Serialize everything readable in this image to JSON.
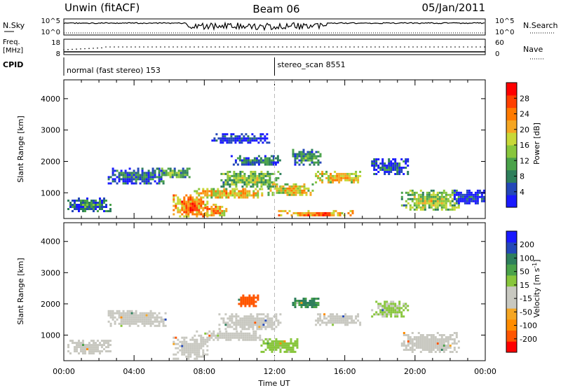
{
  "header": {
    "station": "Unwin (fitACF)",
    "beam": "Beam 06",
    "date": "05/Jan/2011"
  },
  "top_panels": {
    "nsky": {
      "left_label": "N.Sky",
      "right_label": "N.Search",
      "left_ticks": [
        "10^5",
        "10^0"
      ],
      "right_ticks": [
        "10^5",
        "10^0"
      ]
    },
    "freq": {
      "left_label": "Freq.",
      "left_unit": "[MHz]",
      "right_label": "Nave",
      "left_ticks": [
        "18",
        "8"
      ],
      "right_ticks": [
        "60",
        "0"
      ]
    },
    "cpid": {
      "label": "CPID",
      "modes": [
        {
          "text": "normal (fast stereo) 153",
          "start_hour": 0
        },
        {
          "text": "stereo_scan 8551",
          "start_hour": 12
        }
      ]
    }
  },
  "chart_data": [
    {
      "type": "heatmap",
      "title": "",
      "xlabel": "",
      "ylabel": "Slant Range [km]",
      "xlim": [
        0,
        24
      ],
      "ylim": [
        180,
        4600
      ],
      "yticks": [
        1000,
        2000,
        3000,
        4000
      ],
      "colorbar": {
        "label": "Power [dB]",
        "ticks": [
          "4",
          "8",
          "12",
          "16",
          "20",
          "24",
          "28"
        ],
        "tick_values": [
          4,
          8,
          12,
          16,
          20,
          24,
          28
        ],
        "range": [
          0,
          32
        ],
        "colors": [
          "#1a1aff",
          "#2448b8",
          "#2e7f5c",
          "#4aa24a",
          "#88c63c",
          "#c8d838",
          "#f5a623",
          "#ff7a00",
          "#ff4000",
          "#ff0000"
        ]
      },
      "echo_regions": [
        {
          "t0": 0.2,
          "t1": 2.6,
          "r0": 420,
          "r1": 850,
          "power": 10
        },
        {
          "t0": 2.5,
          "t1": 5.8,
          "r0": 1300,
          "r1": 1800,
          "power": 9
        },
        {
          "t0": 5.3,
          "t1": 7.2,
          "r0": 1500,
          "r1": 1800,
          "power": 14
        },
        {
          "t0": 6.2,
          "t1": 8.2,
          "r0": 220,
          "r1": 950,
          "power": 26
        },
        {
          "t0": 8.0,
          "t1": 9.2,
          "r0": 250,
          "r1": 650,
          "power": 24
        },
        {
          "t0": 7.4,
          "t1": 11.3,
          "r0": 850,
          "r1": 1150,
          "power": 22
        },
        {
          "t0": 8.8,
          "t1": 12.3,
          "r0": 1200,
          "r1": 1700,
          "power": 16
        },
        {
          "t0": 9.5,
          "t1": 12.3,
          "r0": 1900,
          "r1": 2200,
          "power": 10
        },
        {
          "t0": 8.4,
          "t1": 11.7,
          "r0": 2600,
          "r1": 2900,
          "power": 5
        },
        {
          "t0": 11.6,
          "t1": 14.2,
          "r0": 900,
          "r1": 1300,
          "power": 20
        },
        {
          "t0": 13.0,
          "t1": 14.6,
          "r0": 1900,
          "r1": 2400,
          "power": 11
        },
        {
          "t0": 14.3,
          "t1": 16.9,
          "r0": 1350,
          "r1": 1700,
          "power": 21
        },
        {
          "t0": 12.2,
          "t1": 16.5,
          "r0": 250,
          "r1": 450,
          "power": 25
        },
        {
          "t0": 17.5,
          "t1": 19.6,
          "r0": 1600,
          "r1": 2100,
          "power": 8
        },
        {
          "t0": 19.2,
          "t1": 22.5,
          "r0": 450,
          "r1": 1100,
          "power": 17
        },
        {
          "t0": 22.2,
          "t1": 23.9,
          "r0": 650,
          "r1": 1100,
          "power": 5
        }
      ]
    },
    {
      "type": "heatmap",
      "title": "",
      "xlabel": "Time UT",
      "ylabel": "Slant Range [km]",
      "xlim": [
        0,
        24
      ],
      "ylim": [
        180,
        4600
      ],
      "yticks": [
        1000,
        2000,
        3000,
        4000
      ],
      "xticks": [
        "00:00",
        "04:00",
        "08:00",
        "12:00",
        "16:00",
        "20:00",
        "00:00"
      ],
      "colorbar": {
        "label": "Velocity [m s^-1]",
        "ticks": [
          "200",
          "100",
          "50",
          "15",
          "-15",
          "-50",
          "-100",
          "-200"
        ],
        "tick_values": [
          200,
          100,
          50,
          15,
          -15,
          -50,
          -100,
          -200
        ],
        "range": [
          -250,
          250
        ],
        "colors": [
          "#ff0000",
          "#ff5500",
          "#ff8c00",
          "#f5a623",
          "#c8c8c0",
          "#c8c8c0",
          "#88c63c",
          "#4aa24a",
          "#2e7f5c",
          "#2448b8",
          "#1a1aff"
        ]
      },
      "echo_regions": [
        {
          "t0": 0.2,
          "t1": 2.6,
          "r0": 420,
          "r1": 850,
          "velocity": 0
        },
        {
          "t0": 2.5,
          "t1": 5.8,
          "r0": 1300,
          "r1": 1800,
          "velocity": 0
        },
        {
          "t0": 6.2,
          "t1": 8.2,
          "r0": 220,
          "r1": 950,
          "velocity": 0
        },
        {
          "t0": 7.4,
          "t1": 11.3,
          "r0": 850,
          "r1": 1150,
          "velocity": -40
        },
        {
          "t0": 8.8,
          "t1": 12.3,
          "r0": 1200,
          "r1": 1700,
          "velocity": -30
        },
        {
          "t0": 9.8,
          "t1": 11.0,
          "r0": 1900,
          "r1": 2300,
          "velocity": -180
        },
        {
          "t0": 11.2,
          "t1": 13.3,
          "r0": 450,
          "r1": 900,
          "velocity": 40
        },
        {
          "t0": 13.0,
          "t1": 14.6,
          "r0": 1900,
          "r1": 2200,
          "velocity": 120
        },
        {
          "t0": 14.3,
          "t1": 16.9,
          "r0": 1350,
          "r1": 1700,
          "velocity": -30
        },
        {
          "t0": 19.2,
          "t1": 22.5,
          "r0": 450,
          "r1": 1100,
          "velocity": 0
        },
        {
          "t0": 17.5,
          "t1": 19.6,
          "r0": 1600,
          "r1": 2100,
          "velocity": 30
        }
      ]
    }
  ]
}
